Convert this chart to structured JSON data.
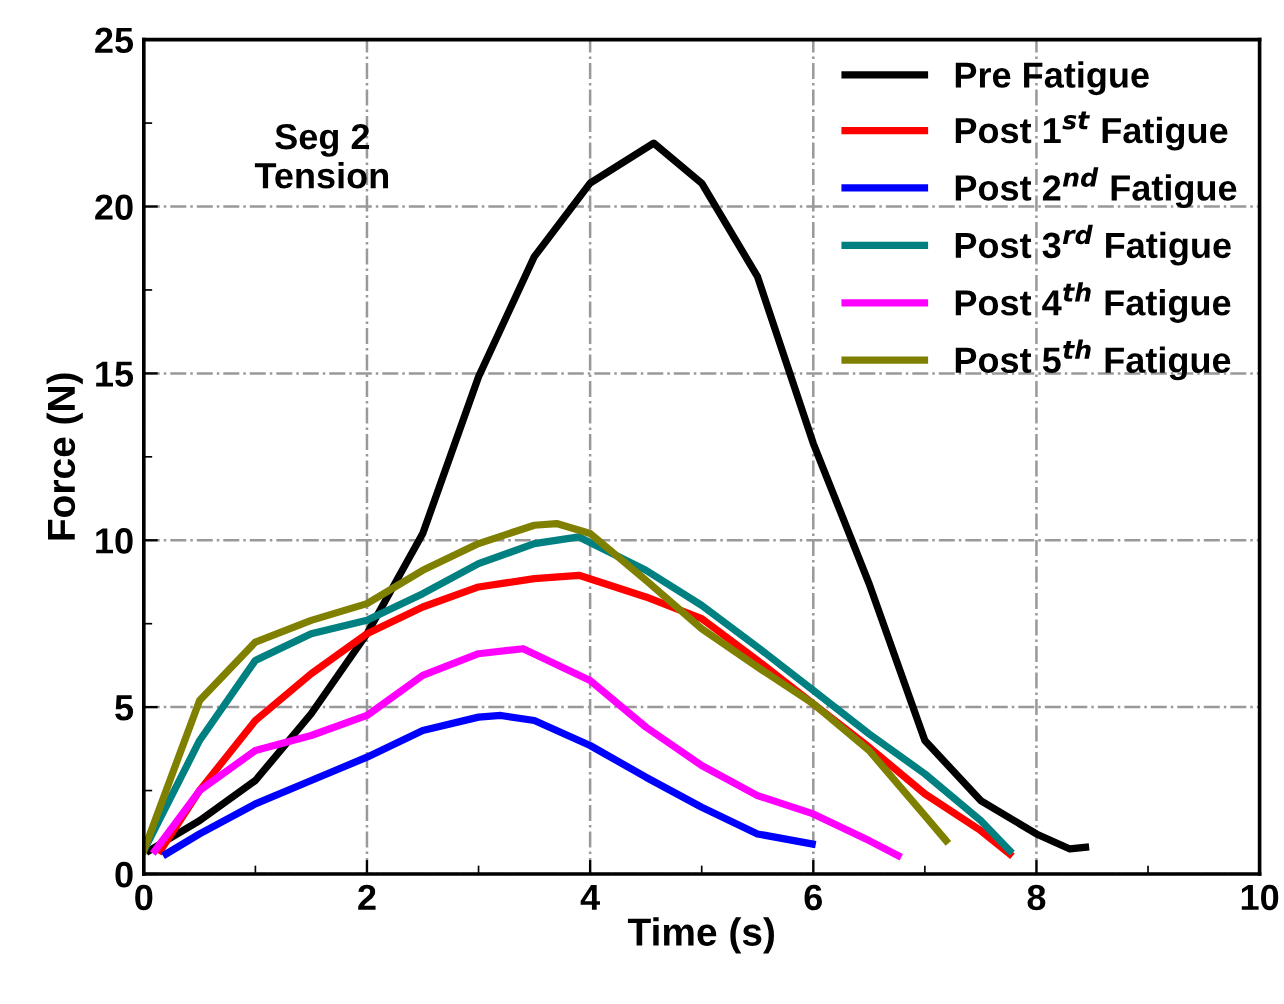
{
  "chart_data": {
    "type": "line",
    "xlabel": "Time (s)",
    "ylabel": "Force (N)",
    "annotations": [
      "Seg 2\nTension"
    ],
    "xlim": [
      0,
      10
    ],
    "xticks": [
      0,
      2,
      4,
      6,
      8,
      10
    ],
    "ylim": [
      0,
      25
    ],
    "yticks": [
      0,
      5,
      10,
      15,
      20,
      25
    ],
    "grid": true,
    "legend": "top right",
    "marker": "none",
    "line_style": "solid",
    "series": [
      {
        "name": "Pre Fatigue",
        "color": "#000000",
        "x": [
          0.05,
          0.5,
          1,
          1.5,
          2,
          2.5,
          3,
          3.5,
          4,
          4.57,
          5,
          5.5,
          6,
          6.5,
          7,
          7.5,
          8,
          8.3,
          8.44
        ],
        "values": [
          0.7,
          1.6,
          2.8,
          4.8,
          7.2,
          10.2,
          14.9,
          18.5,
          20.7,
          21.9,
          20.7,
          17.9,
          12.9,
          8.7,
          4.0,
          2.2,
          1.2,
          0.75,
          0.8
        ]
      },
      {
        "name": "Post 1$^{st}$ Fatigue",
        "color": "#ff0000",
        "x": [
          0.15,
          0.5,
          1,
          1.5,
          2,
          2.5,
          3,
          3.5,
          3.9,
          4.5,
          5,
          5.5,
          6,
          6.5,
          7,
          7.5,
          7.76
        ],
        "values": [
          0.7,
          2.5,
          4.6,
          6.0,
          7.2,
          8.0,
          8.6,
          8.85,
          8.95,
          8.3,
          7.65,
          6.4,
          5.1,
          3.8,
          2.4,
          1.3,
          0.6
        ]
      },
      {
        "name": "Post 2$^{nd}$ Fatigue",
        "color": "#0000ff",
        "x": [
          0.2,
          0.5,
          1,
          1.5,
          2,
          2.5,
          3,
          3.2,
          3.5,
          4,
          4.5,
          5,
          5.5,
          5.99
        ],
        "values": [
          0.6,
          1.2,
          2.1,
          2.8,
          3.5,
          4.3,
          4.7,
          4.75,
          4.6,
          3.85,
          2.9,
          2.0,
          1.2,
          0.9
        ]
      },
      {
        "name": "Post 3$^{rd}$ Fatigue",
        "color": "#008080",
        "x": [
          0.0,
          0.5,
          1,
          1.5,
          2,
          2.5,
          3,
          3.5,
          3.9,
          4.5,
          5,
          5.5,
          6,
          6.5,
          7,
          7.5,
          7.76
        ],
        "values": [
          0.7,
          4.0,
          6.4,
          7.2,
          7.6,
          8.4,
          9.3,
          9.9,
          10.1,
          9.1,
          8.05,
          6.8,
          5.5,
          4.2,
          3.0,
          1.6,
          0.7
        ]
      },
      {
        "name": "Post 4$^{th}$ Fatigue",
        "color": "#ff00ff",
        "x": [
          0.1,
          0.5,
          1,
          1.5,
          2,
          2.5,
          3,
          3.4,
          4,
          4.5,
          5,
          5.5,
          6,
          6.5,
          6.76
        ],
        "values": [
          0.7,
          2.5,
          3.7,
          4.15,
          4.75,
          5.95,
          6.6,
          6.75,
          5.8,
          4.4,
          3.25,
          2.35,
          1.8,
          1.0,
          0.55
        ]
      },
      {
        "name": "Post 5$^{th}$ Fatigue",
        "color": "#808000",
        "x": [
          0.0,
          0.5,
          1,
          1.5,
          2,
          2.5,
          3,
          3.5,
          3.7,
          4,
          4.5,
          5,
          5.5,
          6,
          6.5,
          7,
          7.19
        ],
        "values": [
          0.7,
          5.2,
          6.95,
          7.6,
          8.1,
          9.1,
          9.9,
          10.45,
          10.5,
          10.2,
          8.8,
          7.35,
          6.2,
          5.1,
          3.7,
          1.75,
          1.0
        ]
      }
    ]
  }
}
